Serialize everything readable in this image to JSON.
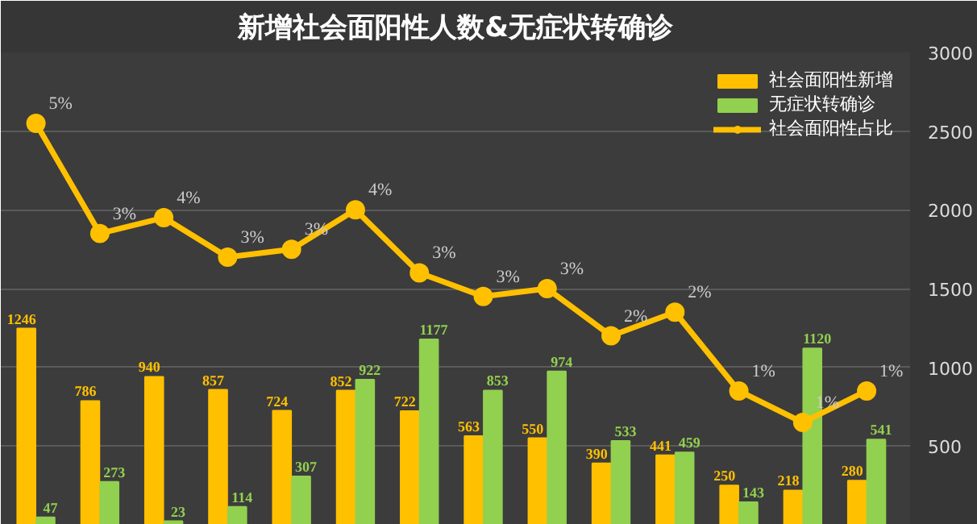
{
  "chart_data": {
    "type": "bar",
    "title": "新增社会面阳性人数&无症状转确诊",
    "categories": [
      null,
      null,
      null,
      null,
      null,
      null,
      null,
      null,
      null,
      null,
      null,
      null,
      null,
      null
    ],
    "series": [
      {
        "name": "社会面阳性新增",
        "color": "#ffc000",
        "values": [
          1246,
          786,
          940,
          857,
          724,
          852,
          722,
          563,
          550,
          390,
          441,
          250,
          218,
          280
        ]
      },
      {
        "name": "无症状转确诊",
        "color": "#92d050",
        "values": [
          47,
          273,
          23,
          114,
          307,
          922,
          1177,
          853,
          974,
          533,
          459,
          143,
          1120,
          541
        ]
      },
      {
        "name": "社会面阳性占比",
        "type": "line",
        "axis": "y2",
        "color": "#ffc000",
        "marker": "circle",
        "values": [
          4.8,
          3.4,
          3.6,
          3.1,
          3.2,
          3.7,
          2.9,
          2.6,
          2.7,
          2.1,
          2.4,
          1.4,
          1.0,
          1.4
        ],
        "value_labels": [
          "5%",
          "3%",
          "4%",
          "3%",
          "3%",
          "4%",
          "3%",
          "3%",
          "3%",
          "2%",
          "2%",
          "1%",
          "1%",
          "1%"
        ]
      }
    ],
    "ylim": [
      0,
      3000
    ],
    "yticks": [
      500,
      1000,
      1500,
      2000,
      2500,
      3000
    ],
    "y2lim": [
      -0.3,
      5.7
    ],
    "tick_labels": "y",
    "grid": "y",
    "legend": "top right",
    "data_labels": true
  }
}
